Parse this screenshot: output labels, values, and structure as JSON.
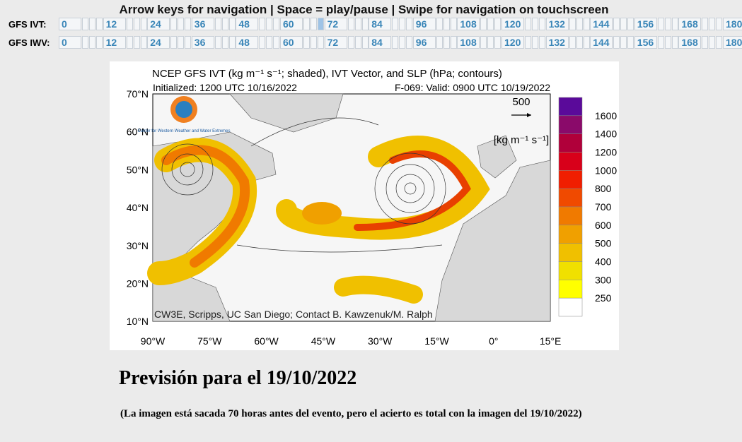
{
  "header": {
    "instructions": "Arrow keys for navigation | Space = play/pause | Swipe for navigation on touchscreen"
  },
  "nav_rows": [
    {
      "label": "GFS IVT:",
      "hours": [
        "0",
        "12",
        "24",
        "36",
        "48",
        "60",
        "72",
        "84",
        "96",
        "108",
        "120",
        "132",
        "144",
        "156",
        "168",
        "180"
      ]
    },
    {
      "label": "GFS IWV:",
      "hours": [
        "0",
        "12",
        "24",
        "36",
        "48",
        "60",
        "72",
        "84",
        "96",
        "108",
        "120",
        "132",
        "144",
        "156",
        "168",
        "180"
      ]
    }
  ],
  "map": {
    "title": "NCEP GFS IVT (kg m⁻¹ s⁻¹; shaded), IVT Vector, and SLP (hPa; contours)",
    "initialized": "Initialized: 1200 UTC 10/16/2022",
    "valid": "F-069: Valid: 0900 UTC 10/19/2022",
    "lat_labels": [
      "70°N",
      "60°N",
      "50°N",
      "40°N",
      "30°N",
      "20°N",
      "10°N"
    ],
    "lon_labels": [
      "90°W",
      "75°W",
      "60°W",
      "45°W",
      "30°W",
      "15°W",
      "0°",
      "15°E"
    ],
    "vector_ref": "500",
    "unit": "[kg m⁻¹ s⁻¹]",
    "colorbar_labels": [
      "1600",
      "1400",
      "1200",
      "1000",
      "800",
      "700",
      "600",
      "500",
      "400",
      "300",
      "250"
    ],
    "logo_text": "Center for Western Weather and Water Extremes",
    "credit": "CW3E, Scripps, UC San Diego; Contact B. Kawzenuk/M. Ralph"
  },
  "caption": {
    "title": "Previsión para el 19/10/2022",
    "note": "(La imagen está sacada 70 horas antes del evento, pero el acierto es total con la imagen del 19/10/2022)"
  }
}
